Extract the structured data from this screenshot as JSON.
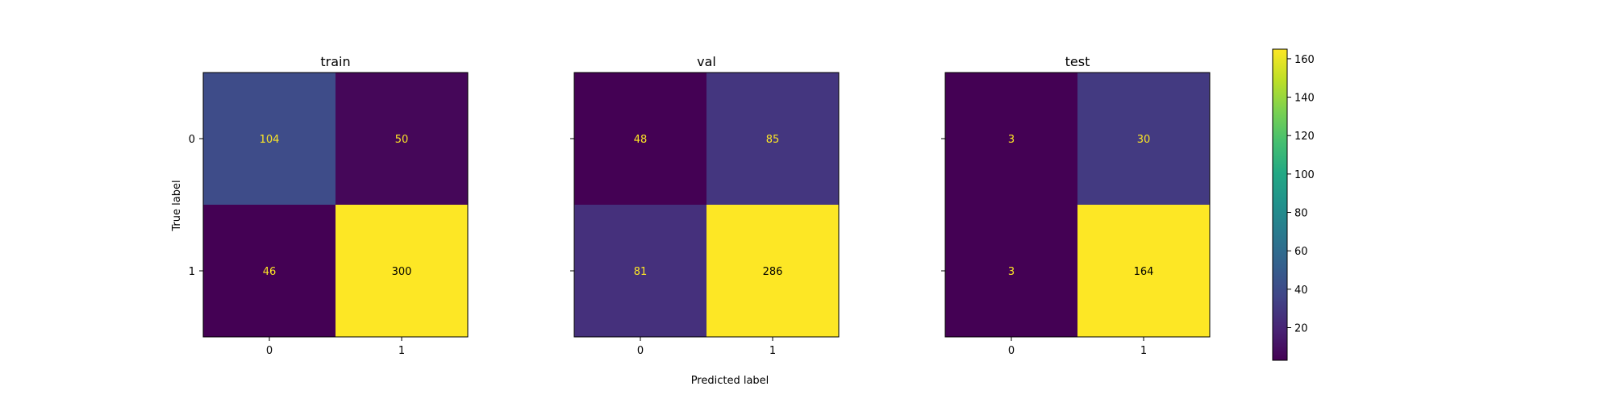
{
  "chart_data": {
    "type": "heatmap",
    "shared_xlabel": "Predicted label",
    "shared_ylabel": "True label",
    "classes": [
      "0",
      "1"
    ],
    "colormap": "viridis",
    "colorbar": {
      "range": [
        3,
        300
      ],
      "ticks": [
        20,
        40,
        60,
        80,
        100,
        120,
        140,
        160
      ],
      "tick_labels": [
        "20",
        "40",
        "60",
        "80",
        "100",
        "120",
        "140",
        "160"
      ]
    },
    "panels": [
      {
        "title": "train",
        "x_ticks": [
          "0",
          "1"
        ],
        "y_ticks": [
          "0",
          "1"
        ],
        "matrix": [
          [
            104,
            50
          ],
          [
            46,
            300
          ]
        ],
        "cell_labels": [
          [
            "104",
            "50"
          ],
          [
            "46",
            "300"
          ]
        ]
      },
      {
        "title": "val",
        "x_ticks": [
          "0",
          "1"
        ],
        "y_ticks": [
          "",
          ""
        ],
        "matrix": [
          [
            48,
            85
          ],
          [
            81,
            286
          ]
        ],
        "cell_labels": [
          [
            "48",
            "85"
          ],
          [
            "81",
            "286"
          ]
        ]
      },
      {
        "title": "test",
        "x_ticks": [
          "0",
          "1"
        ],
        "y_ticks": [
          "",
          ""
        ],
        "matrix": [
          [
            3,
            30
          ],
          [
            3,
            164
          ]
        ],
        "cell_labels": [
          [
            "3",
            "30"
          ],
          [
            "3",
            "164"
          ]
        ]
      }
    ]
  }
}
